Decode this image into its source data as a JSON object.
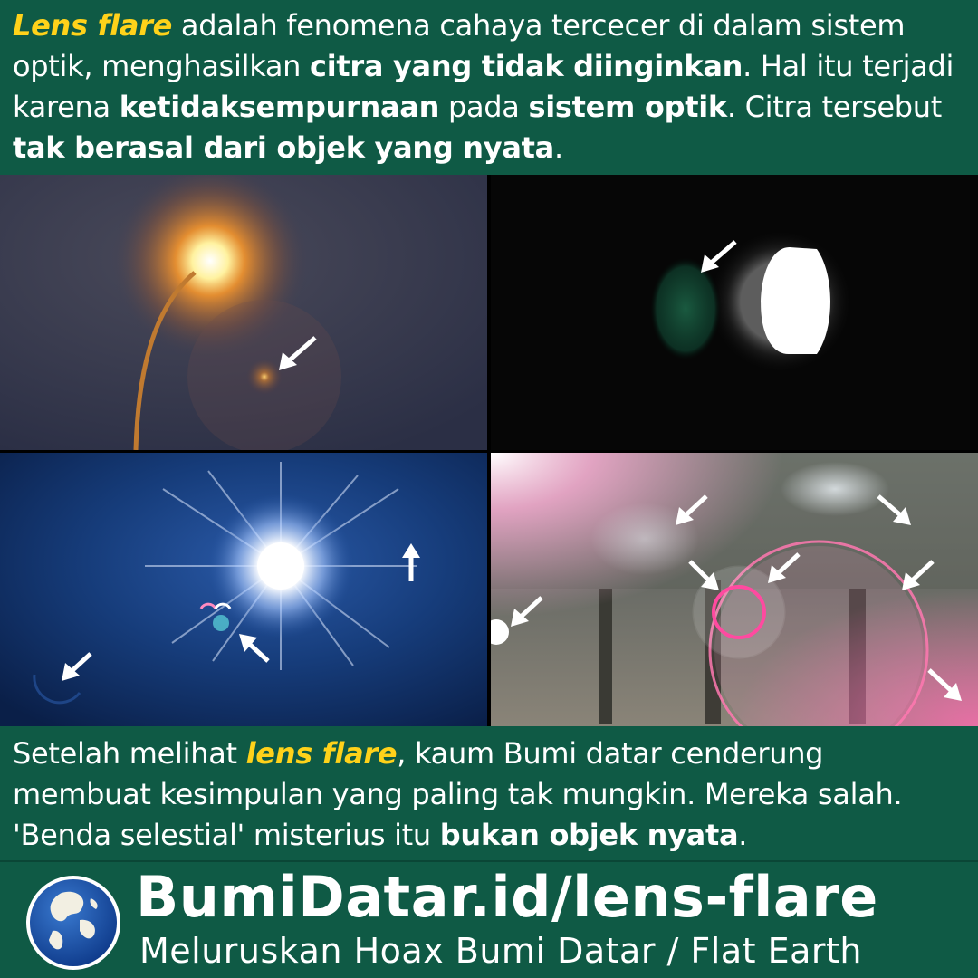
{
  "intro": {
    "term": "Lens flare",
    "t1": " adalah fenomena cahaya tercecer di dalam sistem optik, menghasilkan ",
    "b1": "citra yang tidak diinginkan",
    "t2": ". Hal itu terjadi karena ",
    "b2": "ketidaksempurnaan",
    "t3": " pada ",
    "b3": "sistem optik",
    "t4": ". Citra tersebut ",
    "b4": "tak berasal dari objek yang nyata",
    "t5": "."
  },
  "conclusion": {
    "t1": "Setelah melihat ",
    "term": "lens flare",
    "t2": ", kaum Bumi datar cenderung membuat kesimpulan yang paling tak mungkin. Mereka salah. 'Benda selestial' misterius itu ",
    "b1": "bukan objek nyata",
    "t3": "."
  },
  "footer": {
    "site": "BumiDatar.id/lens-flare",
    "tagline": "Meluruskan Hoax Bumi Datar / Flat Earth"
  },
  "colors": {
    "background": "#0f5a45",
    "highlight": "#ffd21a"
  }
}
